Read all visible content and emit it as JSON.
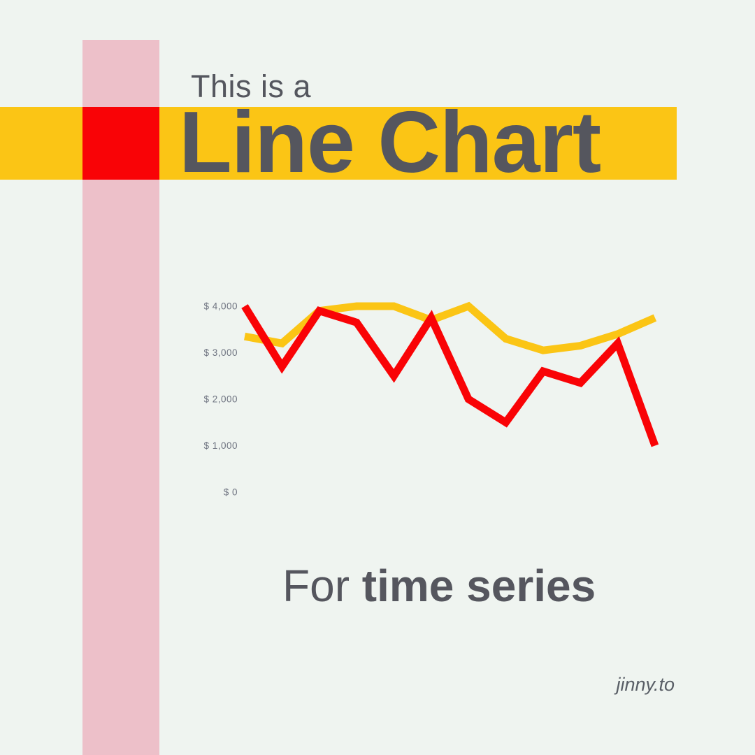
{
  "page": {
    "background_color": "#EFF4F0",
    "eyebrow_text": "This is a",
    "title_text": "Line Chart",
    "subtitle_prefix": "For ",
    "subtitle_emphasis": "time series",
    "watermark_text": "jinny.to"
  },
  "decor": {
    "pink_bar_color": "#EDC0C9",
    "yellow_band_color": "#FBC515",
    "red_square_color": "#F90306",
    "title_text_color": "#55565E"
  },
  "chart_data": {
    "type": "line",
    "title": "",
    "xlabel": "",
    "ylabel": "",
    "x_count": 12,
    "x_tick_labels_visible": false,
    "grid": false,
    "legend": false,
    "ylim": [
      0,
      4000
    ],
    "axis_label_color": "#6E7380",
    "yticks": [
      {
        "value": 4000,
        "label": "$ 4,000"
      },
      {
        "value": 3000,
        "label": "$ 3,000"
      },
      {
        "value": 2000,
        "label": "$ 2,000"
      },
      {
        "value": 1000,
        "label": "$ 1,000"
      },
      {
        "value": 0,
        "label": "$ 0"
      }
    ],
    "series": [
      {
        "name": "yellow-series",
        "color": "#FBC515",
        "stroke_width": 11,
        "values": [
          3350,
          3200,
          3900,
          4000,
          4000,
          3700,
          4000,
          3300,
          3050,
          3150,
          3400,
          3750
        ]
      },
      {
        "name": "red-series",
        "color": "#F90306",
        "stroke_width": 11,
        "values": [
          4000,
          2700,
          3900,
          3650,
          2500,
          3750,
          2000,
          1500,
          2600,
          2350,
          3200,
          1000
        ]
      }
    ]
  }
}
